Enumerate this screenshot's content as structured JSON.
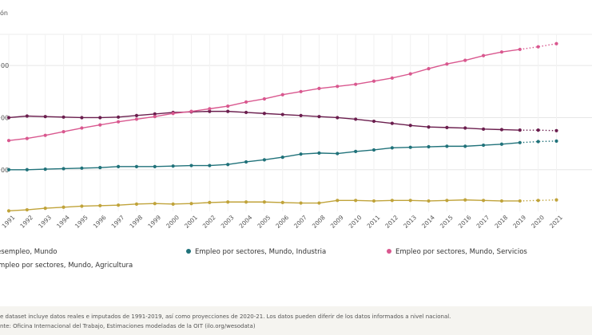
{
  "unit_label": "ón",
  "chart_data": {
    "type": "line",
    "x": [
      "1991",
      "1992",
      "1993",
      "1994",
      "1995",
      "1996",
      "1997",
      "1998",
      "1999",
      "2000",
      "2001",
      "2002",
      "2003",
      "2004",
      "2005",
      "2006",
      "2007",
      "2008",
      "2009",
      "2010",
      "2011",
      "2012",
      "2013",
      "2014",
      "2015",
      "2016",
      "2017",
      "2018",
      "2019",
      "2020",
      "2021"
    ],
    "y_tick_labels": [
      "00",
      "00",
      "00"
    ],
    "y_ticks": [
      3,
      2,
      1
    ],
    "ylim": [
      0.2,
      3.6
    ],
    "projection_from_index": 28,
    "grid": true,
    "legend_placement": "bottom",
    "series": [
      {
        "name": "Desempleo, Mundo",
        "color": "#6b1e4e",
        "values": [
          2.0,
          2.03,
          2.02,
          2.01,
          2.0,
          2.0,
          2.01,
          2.04,
          2.07,
          2.1,
          2.11,
          2.12,
          2.12,
          2.1,
          2.08,
          2.06,
          2.04,
          2.02,
          2.0,
          1.97,
          1.93,
          1.89,
          1.85,
          1.82,
          1.81,
          1.8,
          1.78,
          1.77,
          1.76,
          1.76,
          1.75
        ]
      },
      {
        "name": "Empleo por sectores, Mundo, Industria",
        "color": "#20727a",
        "values": [
          1.0,
          1.0,
          1.01,
          1.02,
          1.03,
          1.04,
          1.06,
          1.06,
          1.06,
          1.07,
          1.08,
          1.08,
          1.1,
          1.15,
          1.19,
          1.24,
          1.3,
          1.32,
          1.31,
          1.35,
          1.38,
          1.42,
          1.43,
          1.44,
          1.45,
          1.45,
          1.47,
          1.49,
          1.52,
          1.54,
          1.55
        ]
      },
      {
        "name": "Empleo por sectores, Mundo, Servicios",
        "color": "#d9588f",
        "values": [
          1.56,
          1.6,
          1.66,
          1.73,
          1.8,
          1.86,
          1.92,
          1.97,
          2.02,
          2.08,
          2.12,
          2.17,
          2.22,
          2.3,
          2.36,
          2.44,
          2.5,
          2.56,
          2.6,
          2.64,
          2.7,
          2.76,
          2.84,
          2.94,
          3.03,
          3.1,
          3.19,
          3.26,
          3.31,
          3.36,
          3.42
        ]
      },
      {
        "name": "Empleo por sectores, Mundo, Agricultura",
        "color": "#c0a33a",
        "values": [
          0.21,
          0.23,
          0.26,
          0.28,
          0.3,
          0.31,
          0.32,
          0.34,
          0.35,
          0.34,
          0.35,
          0.37,
          0.38,
          0.38,
          0.38,
          0.37,
          0.36,
          0.36,
          0.41,
          0.41,
          0.4,
          0.41,
          0.41,
          0.4,
          0.41,
          0.42,
          0.41,
          0.4,
          0.4,
          0.41,
          0.42
        ]
      }
    ]
  },
  "legend": [
    {
      "label": "esempleo, Mundo",
      "color": "#6b1e4e"
    },
    {
      "label": "Empleo por sectores, Mundo, Industria",
      "color": "#20727a"
    },
    {
      "label": "Empleo por sectores, Mundo, Servicios",
      "color": "#d9588f"
    },
    {
      "label": "mpleo por sectores, Mundo, Agricultura",
      "color": "#c0a33a"
    }
  ],
  "footer": {
    "note": "e dataset incluye datos reales e imputados de 1991-2019, así como proyecciones de 2020-21. Los datos pueden diferir de los datos informados a nivel nacional.",
    "source": "nte: Oficina Internacional del Trabajo, Estimaciones modeladas de la OIT (ilo.org/wesodata)"
  }
}
